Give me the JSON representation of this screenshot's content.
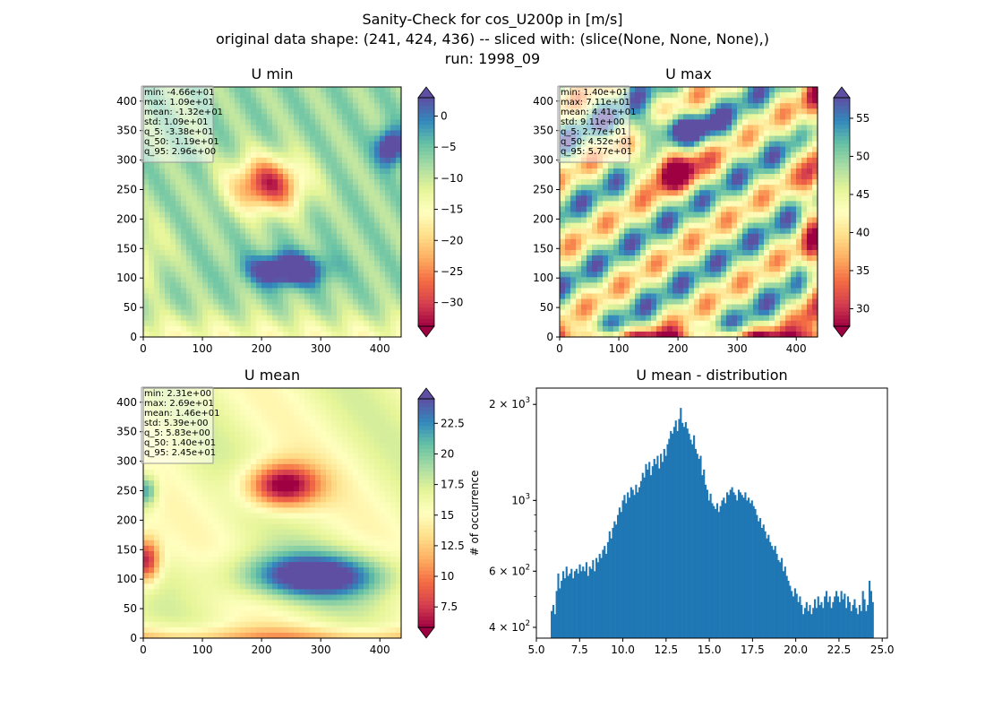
{
  "figure": {
    "title_lines": [
      "Sanity-Check for cos_U200p in [m/s]",
      "original data shape: (241, 424, 436) -- sliced with: (slice(None, None, None),)",
      "run: 1998_09"
    ]
  },
  "chart_data": [
    {
      "type": "heatmap",
      "title": "U min",
      "colormap": "Spectral",
      "x_ticks": [
        "0",
        "100",
        "200",
        "300",
        "400"
      ],
      "y_ticks": [
        "0",
        "50",
        "100",
        "150",
        "200",
        "250",
        "300",
        "350",
        "400"
      ],
      "xlim": [
        0,
        436
      ],
      "ylim": [
        0,
        424
      ],
      "colorbar": {
        "min": -33.8,
        "max": 2.96,
        "ticks": [
          -30,
          -25,
          -20,
          -15,
          -10,
          -5,
          0
        ],
        "extend": "both"
      },
      "stats": [
        "min: -4.66e+01",
        "max: 1.09e+01",
        "mean: -1.32e+01",
        "std: 1.09e+01",
        "q_5: -3.38e+01",
        "q_50: -1.19e+01",
        "q_95: 2.96e+00"
      ]
    },
    {
      "type": "heatmap",
      "title": "U max",
      "colormap": "Spectral",
      "x_ticks": [
        "0",
        "100",
        "200",
        "300",
        "400"
      ],
      "y_ticks": [
        "0",
        "50",
        "100",
        "150",
        "200",
        "250",
        "300",
        "350",
        "400"
      ],
      "xlim": [
        0,
        436
      ],
      "ylim": [
        0,
        424
      ],
      "colorbar": {
        "min": 27.7,
        "max": 57.7,
        "ticks": [
          30,
          35,
          40,
          45,
          50,
          55
        ],
        "extend": "both"
      },
      "stats": [
        "min: 1.40e+01",
        "max: 7.11e+01",
        "mean: 4.41e+01",
        "std: 9.11e+00",
        "q_5: 2.77e+01",
        "q_50: 4.52e+01",
        "q_95: 5.77e+01"
      ]
    },
    {
      "type": "heatmap",
      "title": "U mean",
      "colormap": "Spectral",
      "x_ticks": [
        "0",
        "100",
        "200",
        "300",
        "400"
      ],
      "y_ticks": [
        "0",
        "50",
        "100",
        "150",
        "200",
        "250",
        "300",
        "350",
        "400"
      ],
      "xlim": [
        0,
        436
      ],
      "ylim": [
        0,
        424
      ],
      "colorbar": {
        "min": 5.83,
        "max": 24.5,
        "ticks": [
          7.5,
          10.0,
          12.5,
          15.0,
          17.5,
          20.0,
          22.5
        ],
        "extend": "both"
      },
      "stats": [
        "min: 2.31e+00",
        "max: 2.69e+01",
        "mean: 1.46e+01",
        "std: 5.39e+00",
        "q_5: 5.83e+00",
        "q_50: 1.40e+01",
        "q_95: 2.45e+01"
      ]
    },
    {
      "type": "bar",
      "title": "U mean - distribution",
      "ylabel": "# of occurrence",
      "yscale": "log",
      "color": "#1f77b4",
      "xlim": [
        5.0,
        25.3
      ],
      "ylim": [
        370,
        2250
      ],
      "x_ticks": [
        "5.0",
        "7.5",
        "10.0",
        "12.5",
        "15.0",
        "17.5",
        "20.0",
        "22.5",
        "25.0"
      ],
      "y_ticks": [
        {
          "value": 400,
          "base": "4 × 10",
          "exp": "2"
        },
        {
          "value": 600,
          "base": "6 × 10",
          "exp": "2"
        },
        {
          "value": 1000,
          "base": "10",
          "exp": "3"
        },
        {
          "value": 2000,
          "base": "2 × 10",
          "exp": "3"
        }
      ],
      "bins": {
        "start": 5.83,
        "end": 24.5
      },
      "counts": [
        450,
        470,
        440,
        520,
        590,
        530,
        560,
        600,
        570,
        620,
        580,
        590,
        610,
        570,
        600,
        610,
        590,
        630,
        600,
        620,
        600,
        640,
        580,
        620,
        610,
        650,
        600,
        660,
        640,
        680,
        660,
        700,
        720,
        680,
        740,
        800,
        760,
        820,
        860,
        840,
        900,
        950,
        920,
        1000,
        1040,
        980,
        1060,
        1020,
        1100,
        1080,
        1040,
        1120,
        1060,
        1100,
        1150,
        1220,
        1180,
        1300,
        1250,
        1320,
        1200,
        1280,
        1350,
        1300,
        1380,
        1260,
        1400,
        1320,
        1450,
        1380,
        1500,
        1560,
        1650,
        1620,
        1700,
        1780,
        1650,
        1800,
        1950,
        1750,
        1700,
        1760,
        1680,
        1620,
        1550,
        1500,
        1600,
        1450,
        1400,
        1350,
        1380,
        1200,
        1250,
        1120,
        1080,
        1000,
        1050,
        980,
        960,
        940,
        980,
        920,
        960,
        1000,
        1020,
        980,
        1060,
        1040,
        1080,
        1100,
        1060,
        1040,
        1000,
        1080,
        1060,
        1040,
        1020,
        1060,
        1000,
        1020,
        980,
        1000,
        960,
        940,
        900,
        860,
        880,
        820,
        840,
        800,
        760,
        780,
        740,
        720,
        700,
        720,
        680,
        650,
        640,
        660,
        600,
        620,
        580,
        560,
        540,
        520,
        500,
        530,
        510,
        480,
        500,
        470,
        440,
        460,
        480,
        450,
        470,
        440,
        460,
        490,
        460,
        500,
        470,
        480,
        460,
        500,
        520,
        480,
        500,
        460,
        480,
        500,
        520,
        500,
        480,
        520,
        490,
        510,
        460,
        500,
        480,
        450,
        470,
        490,
        460,
        440,
        470,
        450,
        520,
        490,
        450,
        470,
        560,
        520,
        480
      ]
    }
  ]
}
